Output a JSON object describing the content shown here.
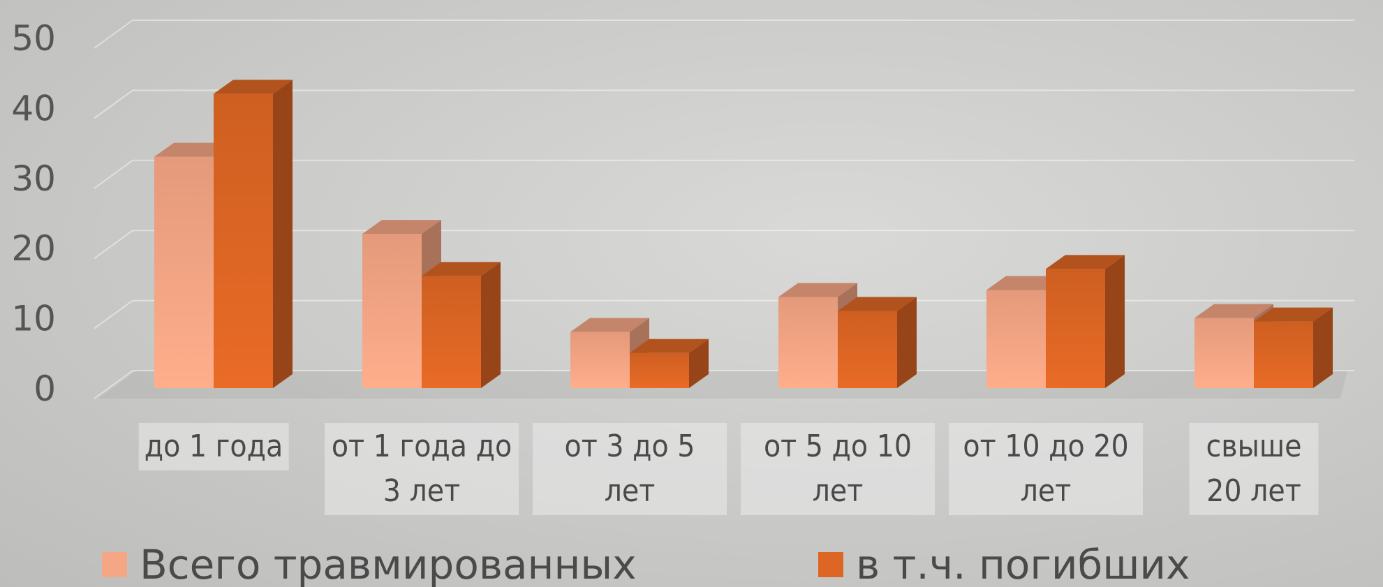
{
  "chart_data": {
    "type": "bar3d",
    "categories": [
      "до 1 года",
      "от 1 года до 3 лет",
      "от 3 до 5 лет",
      "от 5 до 10 лет",
      "от 10 до 20 лет",
      "свыше 20 лет"
    ],
    "series": [
      {
        "name": "Всего травмированных",
        "color": "#f5a684",
        "values": [
          33,
          22,
          8,
          13,
          14,
          10
        ]
      },
      {
        "name": "в т.ч. погибших",
        "color": "#de6624",
        "values": [
          42,
          16,
          5,
          11,
          17,
          9.5
        ]
      }
    ],
    "ylim": [
      0,
      50
    ],
    "yticks": [
      0,
      10,
      20,
      30,
      40,
      50
    ],
    "grid": true
  }
}
